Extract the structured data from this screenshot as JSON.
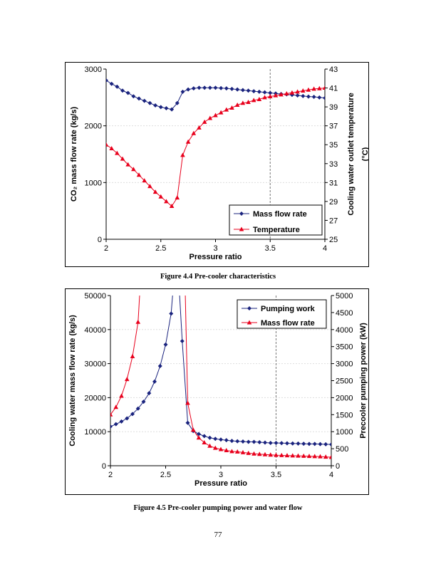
{
  "chart_data": [
    {
      "type": "line",
      "caption": "Figure 4.4 Pre-cooler characteristics",
      "xlabel": "Pressure ratio",
      "ylabel": "CO₂ mass flow rate (kg/s)",
      "y2label_line1": "Cooling water outlet temperature",
      "y2label_line2": "(°C)",
      "xlim": [
        2,
        4
      ],
      "ylim": [
        0,
        3000
      ],
      "y2lim": [
        25,
        43
      ],
      "xticks": [
        "2",
        "2.5",
        "3",
        "3.5",
        "4"
      ],
      "yticks": [
        "0",
        "1000",
        "2000",
        "3000"
      ],
      "y2ticks": [
        "25",
        "27",
        "29",
        "31",
        "33",
        "35",
        "37",
        "39",
        "41",
        "43"
      ],
      "reference_line_x": 3.5,
      "grid": "horizontal, light",
      "legend_placement": "bottom-right",
      "x": [
        2.0,
        2.05,
        2.1,
        2.15,
        2.2,
        2.25,
        2.3,
        2.35,
        2.4,
        2.45,
        2.5,
        2.55,
        2.6,
        2.65,
        2.7,
        2.75,
        2.8,
        2.85,
        2.9,
        2.95,
        3.0,
        3.05,
        3.1,
        3.15,
        3.2,
        3.25,
        3.3,
        3.35,
        3.4,
        3.45,
        3.5,
        3.55,
        3.6,
        3.65,
        3.7,
        3.75,
        3.8,
        3.85,
        3.9,
        3.95,
        4.0
      ],
      "series": [
        {
          "name": "Mass flow rate",
          "axis": "left",
          "color": "#1a237e",
          "marker": "diamond",
          "values": [
            2800,
            2740,
            2690,
            2620,
            2580,
            2520,
            2480,
            2440,
            2400,
            2360,
            2330,
            2310,
            2290,
            2400,
            2600,
            2640,
            2660,
            2670,
            2670,
            2670,
            2670,
            2665,
            2660,
            2650,
            2640,
            2630,
            2620,
            2610,
            2600,
            2590,
            2580,
            2570,
            2560,
            2555,
            2545,
            2535,
            2525,
            2515,
            2510,
            2500,
            2490
          ]
        },
        {
          "name": "Temperature",
          "axis": "right",
          "color": "#e8001c",
          "marker": "triangle",
          "values": [
            35.0,
            34.6,
            34.1,
            33.5,
            32.9,
            32.4,
            31.8,
            31.2,
            30.6,
            30.0,
            29.5,
            29.0,
            28.5,
            29.4,
            33.9,
            35.3,
            36.2,
            36.8,
            37.4,
            37.8,
            38.1,
            38.4,
            38.7,
            38.9,
            39.2,
            39.4,
            39.5,
            39.7,
            39.8,
            40.0,
            40.1,
            40.2,
            40.3,
            40.4,
            40.5,
            40.6,
            40.7,
            40.8,
            40.9,
            40.95,
            41.0
          ]
        }
      ]
    },
    {
      "type": "line",
      "caption": "Figure 4.5 Pre-cooler pumping power and water flow",
      "xlabel": "Pressure ratio",
      "ylabel": "Cooling water mass flow rate (kg/s)",
      "y2label_line1": "Precooler pumping power (kW)",
      "y2label_line2": "",
      "xlim": [
        2,
        4
      ],
      "ylim": [
        0,
        50000
      ],
      "y2lim": [
        0,
        5000
      ],
      "xticks": [
        "2",
        "2.5",
        "3",
        "3.5",
        "4"
      ],
      "yticks": [
        "0",
        "10000",
        "20000",
        "30000",
        "40000",
        "50000"
      ],
      "y2ticks": [
        "0",
        "500",
        "1000",
        "1500",
        "2000",
        "2500",
        "3000",
        "3500",
        "4000",
        "4500",
        "5000"
      ],
      "reference_line_x": 3.5,
      "grid": "horizontal, light",
      "legend_placement": "top-right",
      "x": [
        2.0,
        2.05,
        2.1,
        2.15,
        2.2,
        2.25,
        2.3,
        2.35,
        2.4,
        2.45,
        2.5,
        2.55,
        2.6,
        2.65,
        2.7,
        2.75,
        2.8,
        2.85,
        2.9,
        2.95,
        3.0,
        3.05,
        3.1,
        3.15,
        3.2,
        3.25,
        3.3,
        3.35,
        3.4,
        3.45,
        3.5,
        3.55,
        3.6,
        3.65,
        3.7,
        3.75,
        3.8,
        3.85,
        3.9,
        3.95,
        4.0
      ],
      "series": [
        {
          "name": "Pumping work",
          "axis": "right",
          "color": "#1a237e",
          "marker": "diamond",
          "values": [
            1150,
            1220,
            1300,
            1390,
            1520,
            1680,
            1880,
            2130,
            2470,
            2930,
            3560,
            4470,
            6500,
            3660,
            1260,
            1020,
            930,
            870,
            820,
            790,
            770,
            750,
            730,
            720,
            710,
            700,
            700,
            690,
            680,
            670,
            670,
            665,
            660,
            655,
            650,
            645,
            640,
            640,
            635,
            630,
            625
          ]
        },
        {
          "name": "Mass flow rate",
          "axis": "left",
          "color": "#e8001c",
          "marker": "triangle",
          "values": [
            15000,
            17200,
            20500,
            25400,
            32100,
            42200,
            70000,
            null,
            null,
            null,
            null,
            null,
            null,
            90000,
            18400,
            10500,
            8200,
            6800,
            5800,
            5200,
            4800,
            4500,
            4200,
            4100,
            3900,
            3700,
            3500,
            3400,
            3300,
            3200,
            3100,
            3050,
            3000,
            2950,
            2900,
            2850,
            2800,
            2750,
            2700,
            2600,
            2500
          ]
        }
      ]
    }
  ],
  "page_number": "77"
}
